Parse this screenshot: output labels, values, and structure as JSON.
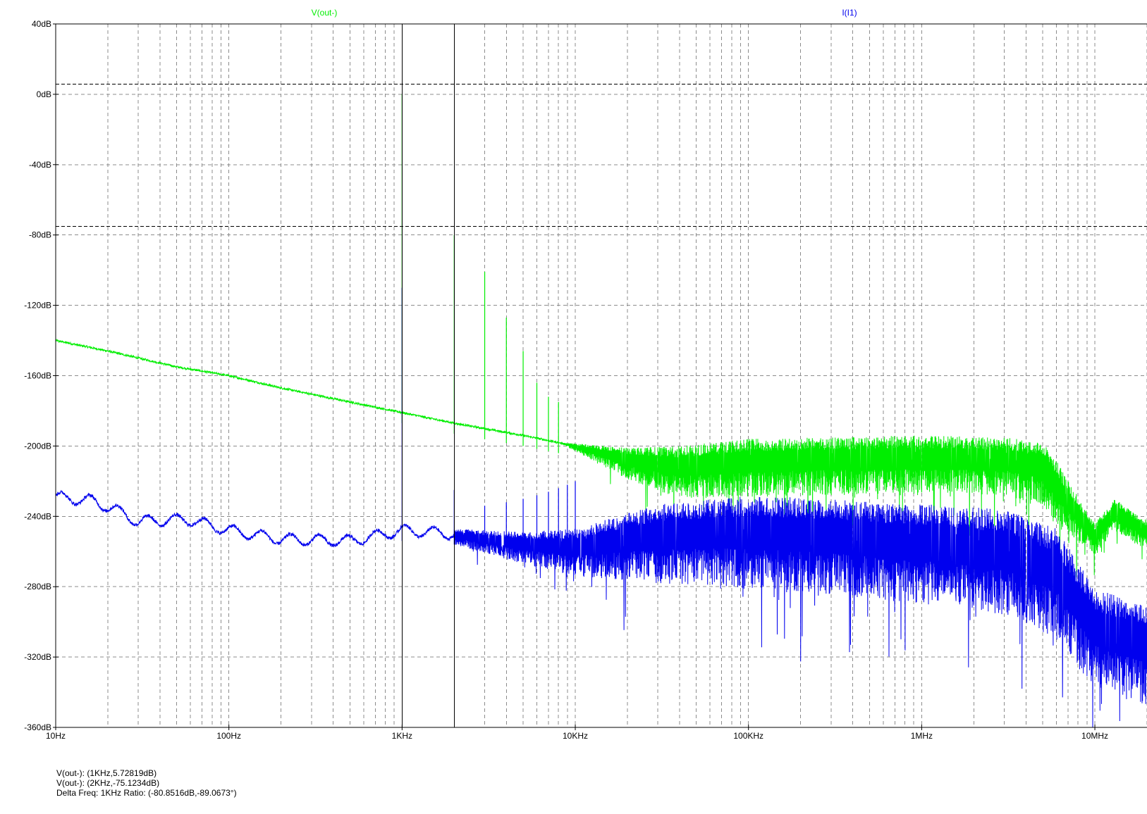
{
  "chart_data": {
    "type": "line",
    "x_scale": "log",
    "xlim": [
      10,
      20000000
    ],
    "ylim": [
      -360,
      40
    ],
    "x_ticks": [
      {
        "value": 10,
        "label": "10Hz"
      },
      {
        "value": 100,
        "label": "100Hz"
      },
      {
        "value": 1000,
        "label": "1KHz"
      },
      {
        "value": 10000,
        "label": "10KHz"
      },
      {
        "value": 100000,
        "label": "100KHz"
      },
      {
        "value": 1000000,
        "label": "1MHz"
      },
      {
        "value": 10000000,
        "label": "10MHz"
      }
    ],
    "y_ticks": [
      {
        "value": 40,
        "label": "40dB"
      },
      {
        "value": 0,
        "label": "0dB"
      },
      {
        "value": -40,
        "label": "-40dB"
      },
      {
        "value": -80,
        "label": "-80dB"
      },
      {
        "value": -120,
        "label": "-120dB"
      },
      {
        "value": -160,
        "label": "-160dB"
      },
      {
        "value": -200,
        "label": "-200dB"
      },
      {
        "value": -240,
        "label": "-240dB"
      },
      {
        "value": -280,
        "label": "-280dB"
      },
      {
        "value": -320,
        "label": "-320dB"
      },
      {
        "value": -360,
        "label": "-360dB"
      }
    ],
    "grid": true,
    "series": [
      {
        "name": "V(out-)",
        "color": "#00ee00",
        "baseline": [
          [
            10,
            -140
          ],
          [
            20,
            -146
          ],
          [
            50,
            -155
          ],
          [
            100,
            -160
          ],
          [
            200,
            -167
          ],
          [
            500,
            -175
          ],
          [
            1000,
            -181
          ],
          [
            2000,
            -187
          ],
          [
            5000,
            -194
          ],
          [
            10000,
            -200
          ],
          [
            20000,
            -207
          ],
          [
            40000,
            -210
          ],
          [
            100000,
            -207
          ],
          [
            300000,
            -206
          ],
          [
            1000000,
            -205
          ],
          [
            3000000,
            -206
          ],
          [
            5000000,
            -210
          ],
          [
            7000000,
            -230
          ],
          [
            10000000,
            -250
          ],
          [
            13000000,
            -236
          ],
          [
            20000000,
            -248
          ]
        ],
        "noise_band": [
          [
            8000,
            0
          ],
          [
            20000,
            12
          ],
          [
            40000,
            20
          ],
          [
            100000,
            22
          ],
          [
            1000000,
            22
          ],
          [
            3000000,
            22
          ],
          [
            6000000,
            25
          ],
          [
            10000000,
            12
          ],
          [
            20000000,
            12
          ]
        ],
        "peaks": [
          [
            1000,
            0
          ],
          [
            2000,
            -80
          ],
          [
            3000,
            -101
          ],
          [
            4000,
            -127
          ],
          [
            5000,
            -146
          ],
          [
            6000,
            -164
          ],
          [
            7000,
            -172
          ],
          [
            8000,
            -175
          ]
        ]
      },
      {
        "name": "I(I1)",
        "color": "#0000ee",
        "baseline": [
          [
            10,
            -229
          ],
          [
            16,
            -231
          ],
          [
            22,
            -236
          ],
          [
            30,
            -243
          ],
          [
            45,
            -242
          ],
          [
            60,
            -242
          ],
          [
            100,
            -248
          ],
          [
            200,
            -253
          ],
          [
            500,
            -254
          ],
          [
            1000,
            -248
          ],
          [
            2000,
            -250
          ],
          [
            5000,
            -255
          ],
          [
            10000,
            -256
          ],
          [
            30000,
            -248
          ],
          [
            100000,
            -246
          ],
          [
            300000,
            -248
          ],
          [
            1000000,
            -252
          ],
          [
            3000000,
            -256
          ],
          [
            6000000,
            -268
          ],
          [
            10000000,
            -300
          ],
          [
            20000000,
            -310
          ]
        ],
        "noise_band": [
          [
            2000,
            6
          ],
          [
            5000,
            12
          ],
          [
            10000,
            18
          ],
          [
            30000,
            30
          ],
          [
            100000,
            35
          ],
          [
            1000000,
            38
          ],
          [
            3000000,
            40
          ],
          [
            6000000,
            42
          ],
          [
            10000000,
            38
          ],
          [
            20000000,
            38
          ]
        ],
        "peaks": [
          [
            1000,
            -110
          ],
          [
            2000,
            -225
          ],
          [
            3000,
            -234
          ],
          [
            4000,
            -232
          ],
          [
            5000,
            -230
          ],
          [
            6000,
            -228
          ],
          [
            7000,
            -226
          ],
          [
            8000,
            -224
          ],
          [
            9000,
            -222
          ],
          [
            10000,
            -220
          ]
        ]
      }
    ],
    "cursors": {
      "vertical_x": [
        1000,
        2000
      ],
      "horizontal_y": [
        5.72819,
        -75.1234
      ]
    }
  },
  "legend": {
    "v_out": "V(out-)",
    "i_i1": "I(I1)"
  },
  "readouts": {
    "cursor1": "V(out-): (1KHz,5.72819dB)",
    "cursor2": "V(out-): (2KHz,-75.1234dB)",
    "delta": "Delta Freq: 1KHz Ratio: (-80.8516dB,-89.0673°)"
  }
}
